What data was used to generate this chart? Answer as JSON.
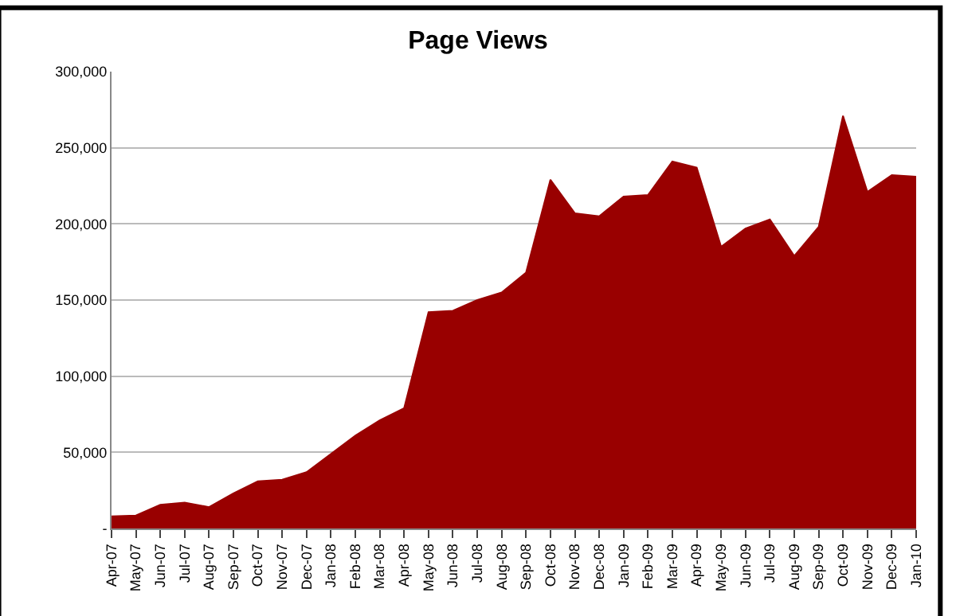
{
  "chart_data": {
    "type": "area",
    "title": "Page Views",
    "categories": [
      "Apr-07",
      "May-07",
      "Jun-07",
      "Jul-07",
      "Aug-07",
      "Sep-07",
      "Oct-07",
      "Nov-07",
      "Dec-07",
      "Jan-08",
      "Feb-08",
      "Mar-08",
      "Apr-08",
      "May-08",
      "Jun-08",
      "Jul-08",
      "Aug-08",
      "Sep-08",
      "Oct-08",
      "Nov-08",
      "Dec-08",
      "Jan-09",
      "Feb-09",
      "Mar-09",
      "Apr-09",
      "May-09",
      "Jun-09",
      "Jul-09",
      "Aug-09",
      "Sep-09",
      "Oct-09",
      "Nov-09",
      "Dec-09",
      "Jan-10"
    ],
    "series": [
      {
        "color": "#990000",
        "values": [
          8000,
          8500,
          15500,
          17000,
          14000,
          23000,
          31000,
          32000,
          37000,
          49000,
          61000,
          71000,
          79000,
          142000,
          143000,
          150000,
          155000,
          168000,
          229000,
          207000,
          205000,
          218000,
          219000,
          241000,
          237000,
          185000,
          197000,
          203000,
          179000,
          198000,
          271000,
          221000,
          232000,
          231000
        ]
      }
    ],
    "ylim": [
      0,
      300000
    ],
    "yticks": [
      {
        "value": 0,
        "label": "-"
      },
      {
        "value": 50000,
        "label": "50,000"
      },
      {
        "value": 100000,
        "label": "100,000"
      },
      {
        "value": 150000,
        "label": "150,000"
      },
      {
        "value": 200000,
        "label": "200,000"
      },
      {
        "value": 250000,
        "label": "250,000"
      },
      {
        "value": 300000,
        "label": "300,000"
      }
    ],
    "grid": "y"
  }
}
